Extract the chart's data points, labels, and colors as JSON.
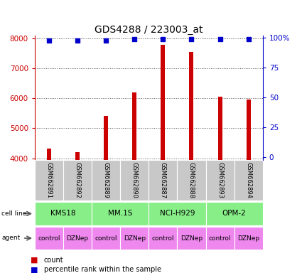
{
  "title": "GDS4288 / 223003_at",
  "samples": [
    "GSM662891",
    "GSM662892",
    "GSM662889",
    "GSM662890",
    "GSM662887",
    "GSM662888",
    "GSM662893",
    "GSM662894"
  ],
  "counts": [
    4320,
    4200,
    5420,
    6200,
    7800,
    7560,
    6060,
    5970
  ],
  "percentile_ranks": [
    98,
    98,
    98,
    99,
    99,
    99,
    99,
    99
  ],
  "ylim_left": [
    3950,
    8100
  ],
  "ylim_right": [
    -2,
    102
  ],
  "yticks_left": [
    4000,
    5000,
    6000,
    7000,
    8000
  ],
  "yticks_right": [
    0,
    25,
    50,
    75,
    100
  ],
  "bar_color": "#cc0000",
  "dot_color": "#0000cc",
  "cell_lines": [
    "KMS18",
    "MM.1S",
    "NCI-H929",
    "OPM-2"
  ],
  "agents": [
    "control",
    "DZNep",
    "control",
    "DZNep",
    "control",
    "DZNep",
    "control",
    "DZNep"
  ],
  "cell_line_color": "#88ee88",
  "agent_color": "#ee88ee",
  "label_bg_color": "#c8c8c8",
  "grid_color": "#555555",
  "left_axis_color": "#cc0000",
  "right_axis_color": "#0000cc",
  "bar_width": 0.15
}
